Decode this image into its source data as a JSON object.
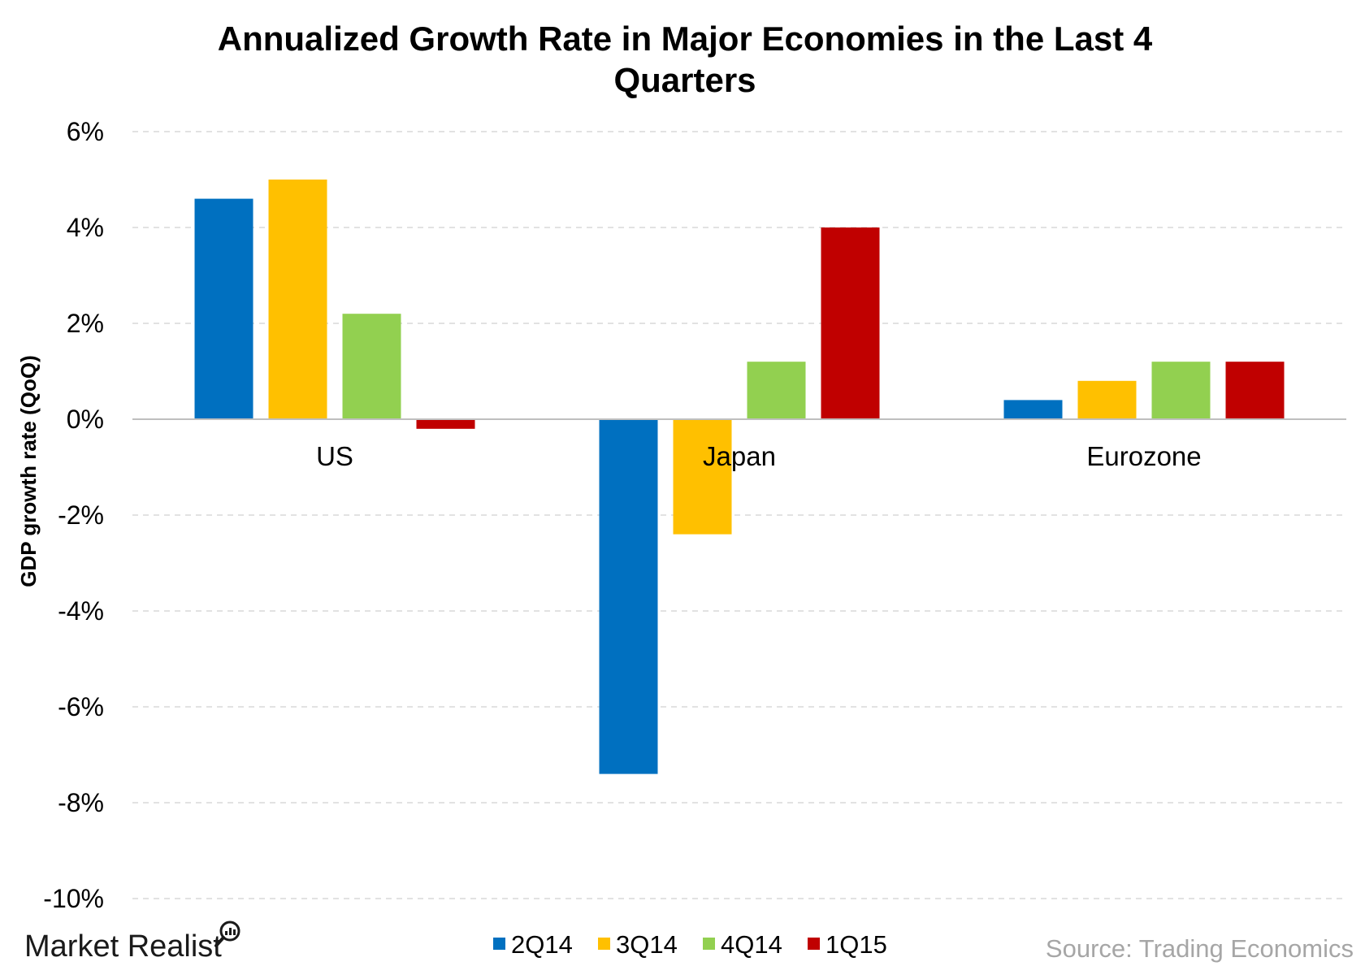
{
  "chart_data": {
    "type": "bar",
    "title": "Annualized Growth Rate in Major Economies in the Last 4 Quarters",
    "title_lines": [
      "Annualized Growth Rate in Major Economies in the Last 4",
      "Quarters"
    ],
    "ylabel": "GDP growth rate (QoQ)",
    "xlabel": "",
    "categories": [
      "US",
      "Japan",
      "Eurozone"
    ],
    "series": [
      {
        "name": "2Q14",
        "color": "#0070C0",
        "values": [
          4.6,
          -7.4,
          0.4
        ]
      },
      {
        "name": "3Q14",
        "color": "#FFC000",
        "values": [
          5.0,
          -2.4,
          0.8
        ]
      },
      {
        "name": "4Q14",
        "color": "#92D050",
        "values": [
          2.2,
          1.2,
          1.2
        ]
      },
      {
        "name": "1Q15",
        "color": "#C00000",
        "values": [
          -0.2,
          4.0,
          1.2
        ]
      }
    ],
    "ylim": [
      -10,
      6
    ],
    "yticks": [
      6,
      4,
      2,
      0,
      -2,
      -4,
      -6,
      -8,
      -10
    ],
    "ytick_labels": [
      "6%",
      "4%",
      "2%",
      "0%",
      "-2%",
      "-4%",
      "-6%",
      "-8%",
      "-10%"
    ],
    "grid": true,
    "legend_position": "bottom-center"
  },
  "branding": {
    "logo_text": "Market Realist",
    "source": "Source: Trading Economics"
  }
}
